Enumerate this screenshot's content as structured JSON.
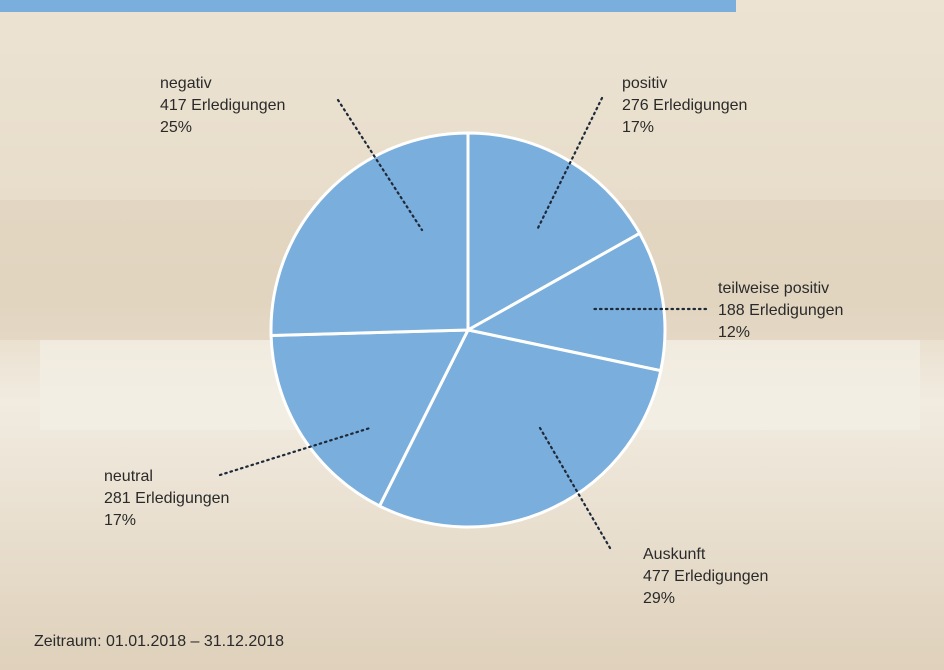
{
  "chart_data": {
    "type": "pie",
    "categories": [
      "positiv",
      "teilweise positiv",
      "Auskunft",
      "neutral",
      "negativ"
    ],
    "values": [
      276,
      188,
      477,
      281,
      417
    ],
    "value_labels": [
      "276 Erledigungen",
      "188 Erledigungen",
      "477 Erledigungen",
      "281 Erledigungen",
      "417 Erledigungen"
    ],
    "percentages": [
      17,
      12,
      29,
      17,
      25
    ],
    "percentage_labels": [
      "17%",
      "12%",
      "29%",
      "17%",
      "25%"
    ],
    "color": "#7aaedc",
    "footnote": "Zeitraum: 01.01.2018 – 31.12.2018"
  }
}
